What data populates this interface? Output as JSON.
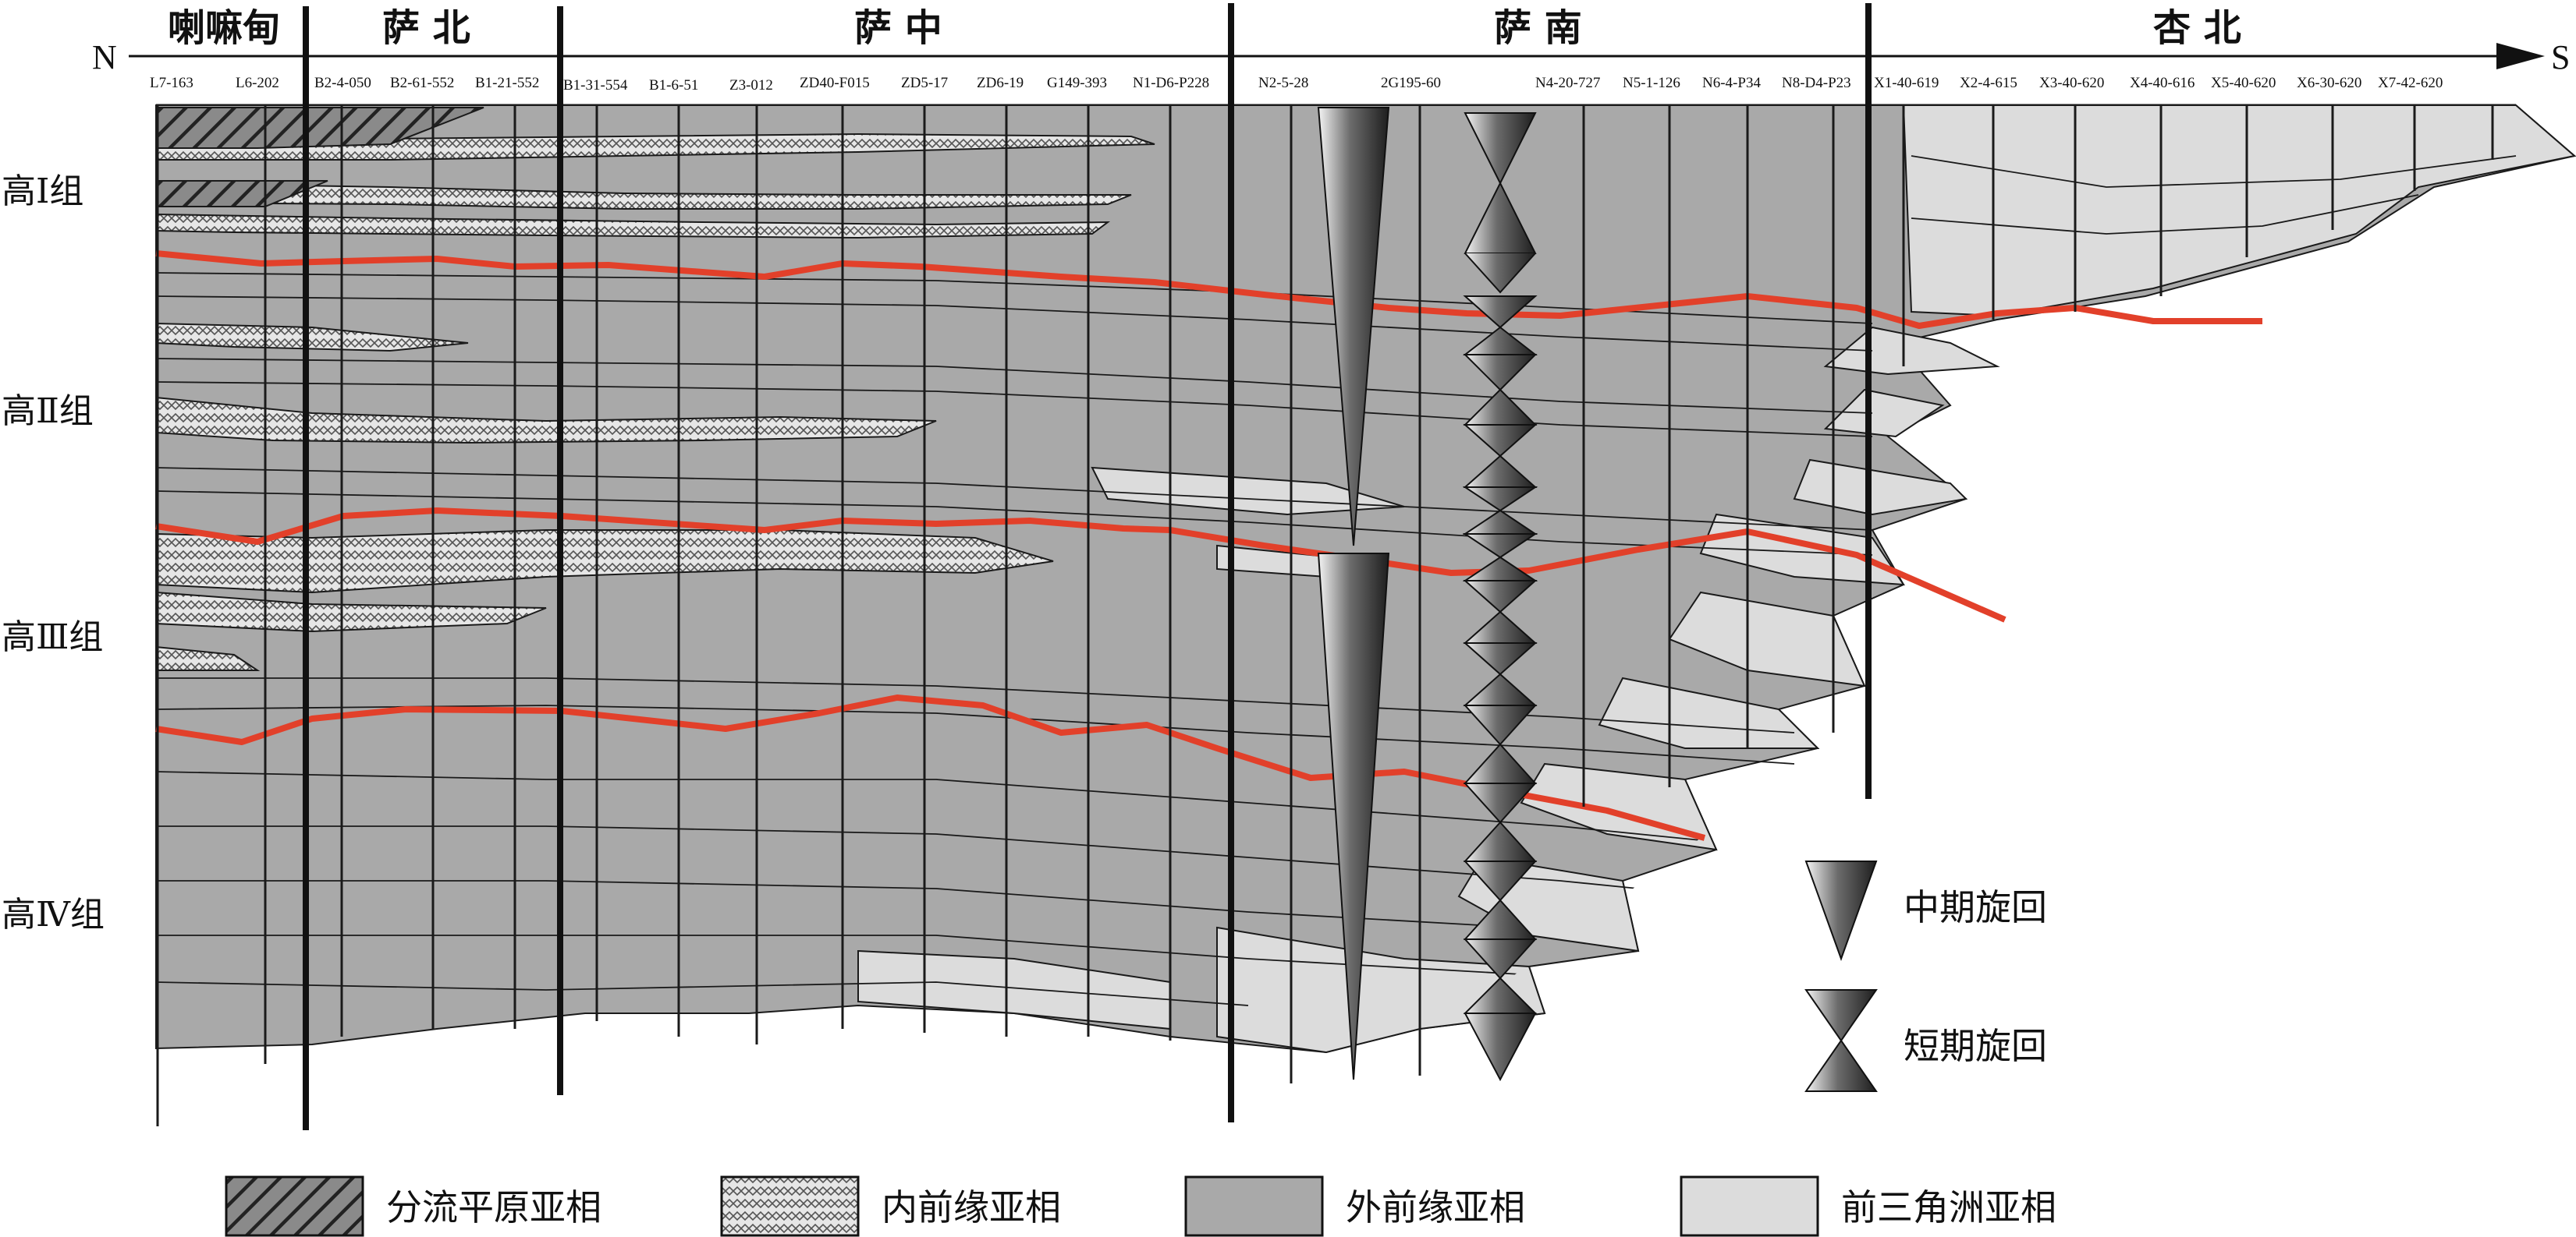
{
  "direction": {
    "north": "N",
    "south": "S"
  },
  "regions": [
    "喇嘛甸",
    "萨 北",
    "萨 中",
    "萨 南",
    "杏 北"
  ],
  "wells": [
    "L7-163",
    "L6-202",
    "B2-4-050",
    "B2-61-552",
    "B1-21-552",
    "B1-31-554",
    "B1-6-51",
    "Z3-012",
    "ZD40-F015",
    "ZD5-17",
    "ZD6-19",
    "G149-393",
    "N1-D6-P228",
    "N2-5-28",
    "2G195-60",
    "N4-20-727",
    "N5-1-126",
    "N6-4-P34",
    "N8-D4-P23",
    "X1-40-619",
    "X2-4-615",
    "X3-40-620",
    "X4-40-616",
    "X5-40-620",
    "X6-30-620",
    "X7-42-620"
  ],
  "groups": [
    "高Ⅰ组",
    "高Ⅱ组",
    "高Ⅲ组",
    "高Ⅳ组"
  ],
  "cycle_legend": {
    "medium": "中期旋回",
    "short": "短期旋回"
  },
  "facies_legend": [
    "分流平原亚相",
    "内前缘亚相",
    "外前缘亚相",
    "前三角洲亚相"
  ],
  "colors": {
    "outer_front": "#a9a9a9",
    "prodelta": "#dcdcdc",
    "boundary_red": "#e2402a",
    "line": "#1a1a1a"
  }
}
